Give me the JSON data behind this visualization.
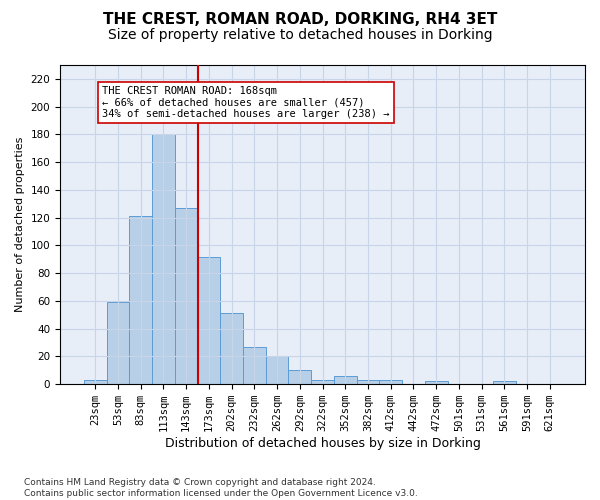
{
  "title": "THE CREST, ROMAN ROAD, DORKING, RH4 3ET",
  "subtitle": "Size of property relative to detached houses in Dorking",
  "xlabel": "Distribution of detached houses by size in Dorking",
  "ylabel": "Number of detached properties",
  "bar_values": [
    3,
    59,
    121,
    180,
    127,
    92,
    51,
    27,
    20,
    10,
    3,
    6,
    3,
    3,
    0,
    2,
    0,
    0,
    2,
    0,
    0
  ],
  "bar_labels": [
    "23sqm",
    "53sqm",
    "83sqm",
    "113sqm",
    "143sqm",
    "173sqm",
    "202sqm",
    "232sqm",
    "262sqm",
    "292sqm",
    "322sqm",
    "352sqm",
    "382sqm",
    "412sqm",
    "442sqm",
    "472sqm",
    "501sqm",
    "531sqm",
    "561sqm",
    "591sqm",
    "621sqm"
  ],
  "bar_color": "#b8cfe8",
  "bar_edge_color": "#5b9bd5",
  "bar_width": 1.0,
  "vline_x": 4.5,
  "vline_color": "#cc0000",
  "annotation_text": "THE CREST ROMAN ROAD: 168sqm\n← 66% of detached houses are smaller (457)\n34% of semi-detached houses are larger (238) →",
  "annotation_box_color": "#ffffff",
  "annotation_box_edge": "#cc0000",
  "ylim": [
    0,
    230
  ],
  "yticks": [
    0,
    20,
    40,
    60,
    80,
    100,
    120,
    140,
    160,
    180,
    200,
    220
  ],
  "grid_color": "#c8d4e8",
  "bg_color": "#e8eef8",
  "footer": "Contains HM Land Registry data © Crown copyright and database right 2024.\nContains public sector information licensed under the Open Government Licence v3.0.",
  "title_fontsize": 11,
  "subtitle_fontsize": 10,
  "xlabel_fontsize": 9,
  "ylabel_fontsize": 8,
  "tick_fontsize": 7.5,
  "annotation_fontsize": 7.5,
  "footer_fontsize": 6.5
}
